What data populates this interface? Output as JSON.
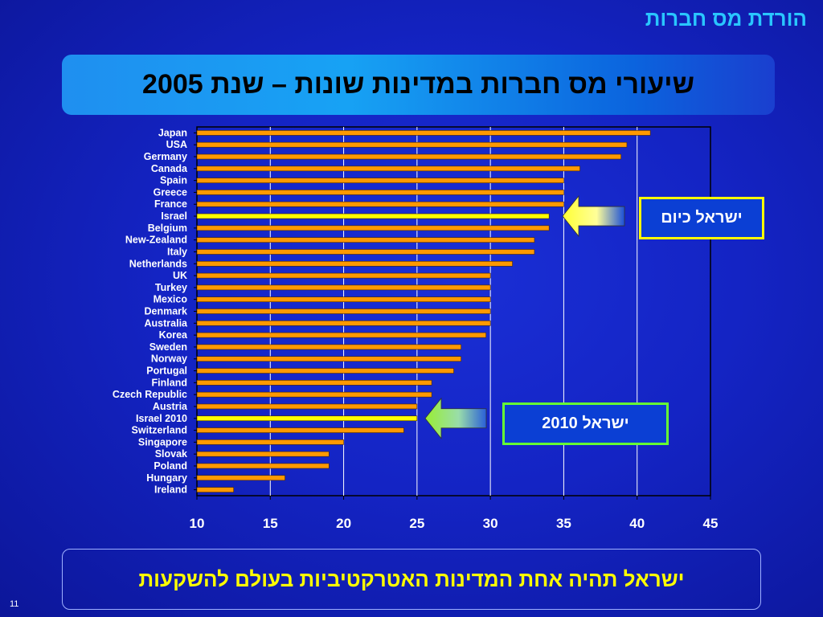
{
  "header": {
    "title": "הורדת מס חברות"
  },
  "banner": {
    "title": "שיעורי מס חברות במדינות שונות – שנת 2005"
  },
  "callouts": {
    "israel_today": "ישראל כיום",
    "israel_2010": "ישראל 2010"
  },
  "footer": {
    "message": "ישראל תהיה אחת המדינות האטרקטיביות בעולם להשקעות",
    "slide_number": "11"
  },
  "colors": {
    "bar": "#ff9900",
    "highlight_bar": "#ffff00",
    "grid": "#ffffff",
    "text": "#ffffff"
  },
  "chart_data": {
    "type": "bar",
    "orientation": "horizontal",
    "title": "",
    "xlabel": "",
    "ylabel": "",
    "xlim": [
      10,
      45
    ],
    "xticks": [
      "10",
      "15",
      "20",
      "25",
      "30",
      "35",
      "40",
      "45"
    ],
    "grid": true,
    "categories": [
      "Japan",
      "USA",
      "Germany",
      "Canada",
      "Spain",
      "Greece",
      "France",
      "Israel",
      "Belgium",
      "New-Zealand",
      "Italy",
      "Netherlands",
      "UK",
      "Turkey",
      "Mexico",
      "Denmark",
      "Australia",
      "Korea",
      "Sweden",
      "Norway",
      "Portugal",
      "Finland",
      "Czech Republic",
      "Austria",
      "Israel 2010",
      "Switzerland",
      "Singapore",
      "Slovak",
      "Poland",
      "Hungary",
      "Ireland"
    ],
    "values": [
      40.9,
      39.3,
      38.9,
      36.1,
      35,
      35,
      35,
      34,
      34,
      33,
      33,
      31.5,
      30,
      30,
      30,
      30,
      30,
      29.7,
      28,
      28,
      27.5,
      26,
      26,
      25,
      25,
      24.1,
      20,
      19,
      19,
      16,
      12.5
    ],
    "highlighted": [
      "Israel",
      "Israel 2010"
    ]
  }
}
